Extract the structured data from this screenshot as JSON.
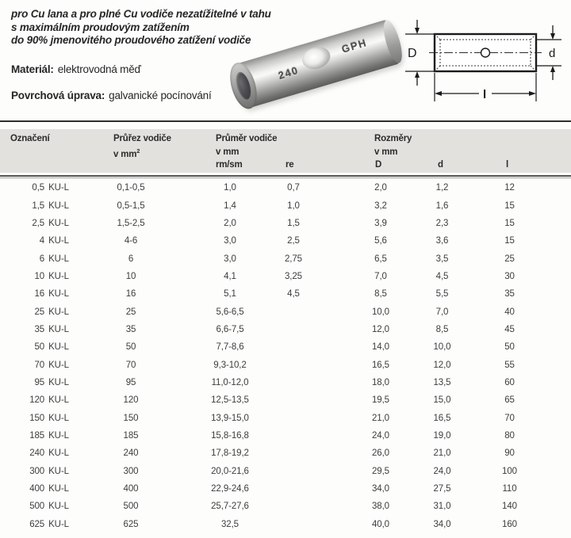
{
  "intro": {
    "line1": "pro Cu lana a pro plné Cu vodiče nezatížitelné v tahu",
    "line2": "s maximálním proudovým zatížením",
    "line3": "do 90% jmenovitého proudového zatížení vodiče",
    "material_label": "Materiál:",
    "material_value": "elektrovodná měď",
    "surface_label": "Povrchová úprava:",
    "surface_value": "galvanické pocínování"
  },
  "photo": {
    "stamp_left": "240",
    "stamp_right": "GPH"
  },
  "diagram": {
    "label_outer": "D",
    "label_inner": "d",
    "label_length": "l"
  },
  "colors": {
    "header_band": "#e2e1dd",
    "rule_dark": "#2e2e2e",
    "text": "#2f2f2f"
  },
  "table": {
    "headers": {
      "designation": "Označení",
      "cross_section": "Průřez vodiče",
      "cross_section_unit": "v mm",
      "cross_section_unit_sup": "2",
      "diameter": "Průměr vodiče",
      "diameter_unit": "v mm",
      "sub_rm_sm": "rm/sm",
      "sub_re": "re",
      "dimensions": "Rozměry",
      "dimensions_unit": "v mm",
      "sub_D": "D",
      "sub_d": "d",
      "sub_l": "l"
    },
    "rows": [
      {
        "designation_value": "0,5",
        "designation_type": "KU-L",
        "cross_section": "0,1-0,5",
        "rm_sm": "1,0",
        "re": "0,7",
        "D": "2,0",
        "d": "1,2",
        "l": "12"
      },
      {
        "designation_value": "1,5",
        "designation_type": "KU-L",
        "cross_section": "0,5-1,5",
        "rm_sm": "1,4",
        "re": "1,0",
        "D": "3,2",
        "d": "1,6",
        "l": "15"
      },
      {
        "designation_value": "2,5",
        "designation_type": "KU-L",
        "cross_section": "1,5-2,5",
        "rm_sm": "2,0",
        "re": "1,5",
        "D": "3,9",
        "d": "2,3",
        "l": "15"
      },
      {
        "designation_value": "4",
        "designation_type": "KU-L",
        "cross_section": "4-6",
        "rm_sm": "3,0",
        "re": "2,5",
        "D": "5,6",
        "d": "3,6",
        "l": "15"
      },
      {
        "designation_value": "6",
        "designation_type": "KU-L",
        "cross_section": "6",
        "rm_sm": "3,0",
        "re": "2,75",
        "D": "6,5",
        "d": "3,5",
        "l": "25"
      },
      {
        "designation_value": "10",
        "designation_type": "KU-L",
        "cross_section": "10",
        "rm_sm": "4,1",
        "re": "3,25",
        "D": "7,0",
        "d": "4,5",
        "l": "30"
      },
      {
        "designation_value": "16",
        "designation_type": "KU-L",
        "cross_section": "16",
        "rm_sm": "5,1",
        "re": "4,5",
        "D": "8,5",
        "d": "5,5",
        "l": "35"
      },
      {
        "designation_value": "25",
        "designation_type": "KU-L",
        "cross_section": "25",
        "rm_sm": "5,6-6,5",
        "re": "",
        "D": "10,0",
        "d": "7,0",
        "l": "40"
      },
      {
        "designation_value": "35",
        "designation_type": "KU-L",
        "cross_section": "35",
        "rm_sm": "6,6-7,5",
        "re": "",
        "D": "12,0",
        "d": "8,5",
        "l": "45"
      },
      {
        "designation_value": "50",
        "designation_type": "KU-L",
        "cross_section": "50",
        "rm_sm": "7,7-8,6",
        "re": "",
        "D": "14,0",
        "d": "10,0",
        "l": "50"
      },
      {
        "designation_value": "70",
        "designation_type": "KU-L",
        "cross_section": "70",
        "rm_sm": "9,3-10,2",
        "re": "",
        "D": "16,5",
        "d": "12,0",
        "l": "55"
      },
      {
        "designation_value": "95",
        "designation_type": "KU-L",
        "cross_section": "95",
        "rm_sm": "11,0-12,0",
        "re": "",
        "D": "18,0",
        "d": "13,5",
        "l": "60"
      },
      {
        "designation_value": "120",
        "designation_type": "KU-L",
        "cross_section": "120",
        "rm_sm": "12,5-13,5",
        "re": "",
        "D": "19,5",
        "d": "15,0",
        "l": "65"
      },
      {
        "designation_value": "150",
        "designation_type": "KU-L",
        "cross_section": "150",
        "rm_sm": "13,9-15,0",
        "re": "",
        "D": "21,0",
        "d": "16,5",
        "l": "70"
      },
      {
        "designation_value": "185",
        "designation_type": "KU-L",
        "cross_section": "185",
        "rm_sm": "15,8-16,8",
        "re": "",
        "D": "24,0",
        "d": "19,0",
        "l": "80"
      },
      {
        "designation_value": "240",
        "designation_type": "KU-L",
        "cross_section": "240",
        "rm_sm": "17,8-19,2",
        "re": "",
        "D": "26,0",
        "d": "21,0",
        "l": "90"
      },
      {
        "designation_value": "300",
        "designation_type": "KU-L",
        "cross_section": "300",
        "rm_sm": "20,0-21,6",
        "re": "",
        "D": "29,5",
        "d": "24,0",
        "l": "100"
      },
      {
        "designation_value": "400",
        "designation_type": "KU-L",
        "cross_section": "400",
        "rm_sm": "22,9-24,6",
        "re": "",
        "D": "34,0",
        "d": "27,5",
        "l": "110"
      },
      {
        "designation_value": "500",
        "designation_type": "KU-L",
        "cross_section": "500",
        "rm_sm": "25,7-27,6",
        "re": "",
        "D": "38,0",
        "d": "31,0",
        "l": "140"
      },
      {
        "designation_value": "625",
        "designation_type": "KU-L",
        "cross_section": "625",
        "rm_sm": "32,5",
        "re": "",
        "D": "40,0",
        "d": "34,0",
        "l": "160"
      }
    ]
  }
}
